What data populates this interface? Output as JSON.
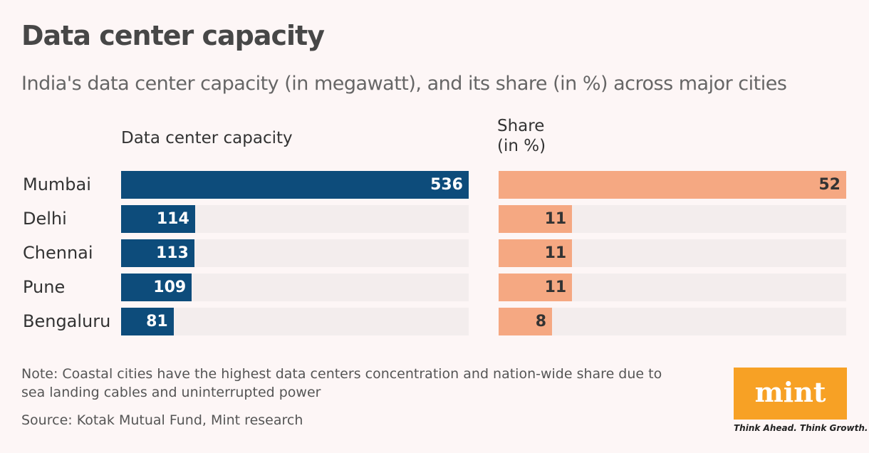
{
  "title": "Data center capacity",
  "subtitle": "India's data center capacity (in megawatt), and its share (in %) across major cities",
  "chart_data": [
    {
      "type": "bar",
      "orientation": "horizontal",
      "title": "Data center capacity",
      "categories": [
        "Mumbai",
        "Delhi",
        "Chennai",
        "Pune",
        "Bengaluru"
      ],
      "values": [
        536,
        114,
        113,
        109,
        81
      ],
      "color": "#0d4c7b",
      "labels": [
        "536",
        "114",
        "113",
        "109",
        "81"
      ]
    },
    {
      "type": "bar",
      "orientation": "horizontal",
      "title_lines": [
        "Share",
        "(in %)"
      ],
      "categories": [
        "Mumbai",
        "Delhi",
        "Chennai",
        "Pune",
        "Bengaluru"
      ],
      "values": [
        52,
        11,
        11,
        11,
        8
      ],
      "color": "#f5a882",
      "labels": [
        "52",
        "11",
        "11",
        "11",
        "8"
      ]
    }
  ],
  "note_lines": [
    "Note: Coastal cities have the highest data centers concentration and nation-wide share due to",
    "sea landing cables and uninterrupted power"
  ],
  "source": "Source: Kotak Mutual Fund, Mint research",
  "logo": {
    "text": "mint",
    "tagline": "Think Ahead. Think Growth.",
    "color": "#f7a125"
  }
}
